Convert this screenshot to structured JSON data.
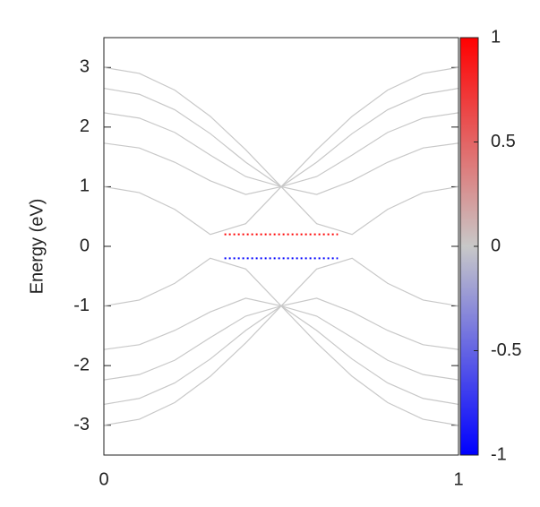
{
  "chart_data": {
    "type": "line",
    "ylabel": "Energy (eV)",
    "x": [
      0,
      0.1,
      0.2,
      0.3,
      0.4,
      0.5,
      0.6,
      0.7,
      0.8,
      0.9,
      1
    ],
    "xlim": [
      0,
      1
    ],
    "xticks": [
      0,
      1
    ],
    "ylim": [
      -3.5,
      3.5
    ],
    "yticks": [
      -3,
      -2,
      -1,
      0,
      1,
      2,
      3
    ],
    "series": [
      {
        "color": "#c8c8c8",
        "values": [
          3,
          2.9,
          2.62,
          2.18,
          1.62,
          1,
          0.38,
          0.2,
          0.62,
          0.9,
          1
        ]
      },
      {
        "color": "#c8c8c8",
        "values": [
          1,
          0.9,
          0.62,
          0.2,
          0.38,
          1,
          1.62,
          2.18,
          2.62,
          2.9,
          3
        ]
      },
      {
        "color": "#c8c8c8",
        "values": [
          2.65,
          2.55,
          2.29,
          1.89,
          1.41,
          1,
          0.87,
          1.1,
          1.41,
          1.65,
          1.73
        ]
      },
      {
        "color": "#c8c8c8",
        "values": [
          1.73,
          1.65,
          1.41,
          1.1,
          0.87,
          1,
          1.41,
          1.89,
          2.29,
          2.55,
          2.65
        ]
      },
      {
        "color": "#c8c8c8",
        "values": [
          2.24,
          2.15,
          1.91,
          1.53,
          1.17,
          1,
          1.17,
          1.53,
          1.91,
          2.15,
          2.24
        ]
      },
      {
        "color": "#c8c8c8",
        "values": [
          -3,
          -2.9,
          -2.62,
          -2.18,
          -1.62,
          -1,
          -0.38,
          -0.2,
          -0.62,
          -0.9,
          -1
        ]
      },
      {
        "color": "#c8c8c8",
        "values": [
          -1,
          -0.9,
          -0.62,
          -0.2,
          -0.38,
          -1,
          -1.62,
          -2.18,
          -2.62,
          -2.9,
          -3
        ]
      },
      {
        "color": "#c8c8c8",
        "values": [
          -2.65,
          -2.55,
          -2.29,
          -1.89,
          -1.41,
          -1,
          -0.87,
          -1.1,
          -1.41,
          -1.65,
          -1.73
        ]
      },
      {
        "color": "#c8c8c8",
        "values": [
          -1.73,
          -1.65,
          -1.41,
          -1.1,
          -0.87,
          -1,
          -1.41,
          -1.89,
          -2.29,
          -2.55,
          -2.65
        ]
      },
      {
        "color": "#c8c8c8",
        "values": [
          -2.24,
          -2.15,
          -1.91,
          -1.53,
          -1.17,
          -1,
          -1.17,
          -1.53,
          -1.91,
          -2.15,
          -2.24
        ]
      },
      {
        "color": "#ff0000",
        "x": [
          0.34,
          0.4,
          0.5,
          0.6,
          0.66
        ],
        "values": [
          0.2,
          0.2,
          0.2,
          0.2,
          0.2
        ]
      },
      {
        "color": "#0000ff",
        "x": [
          0.34,
          0.4,
          0.5,
          0.6,
          0.66
        ],
        "values": [
          -0.2,
          -0.2,
          -0.2,
          -0.2,
          -0.2
        ]
      }
    ],
    "colorbar": {
      "lim": [
        -1,
        1
      ],
      "ticks": [
        -1,
        -0.5,
        0,
        0.5,
        1
      ],
      "colors": [
        "#0000ff",
        "#c8c8c8",
        "#ff0000"
      ]
    }
  }
}
